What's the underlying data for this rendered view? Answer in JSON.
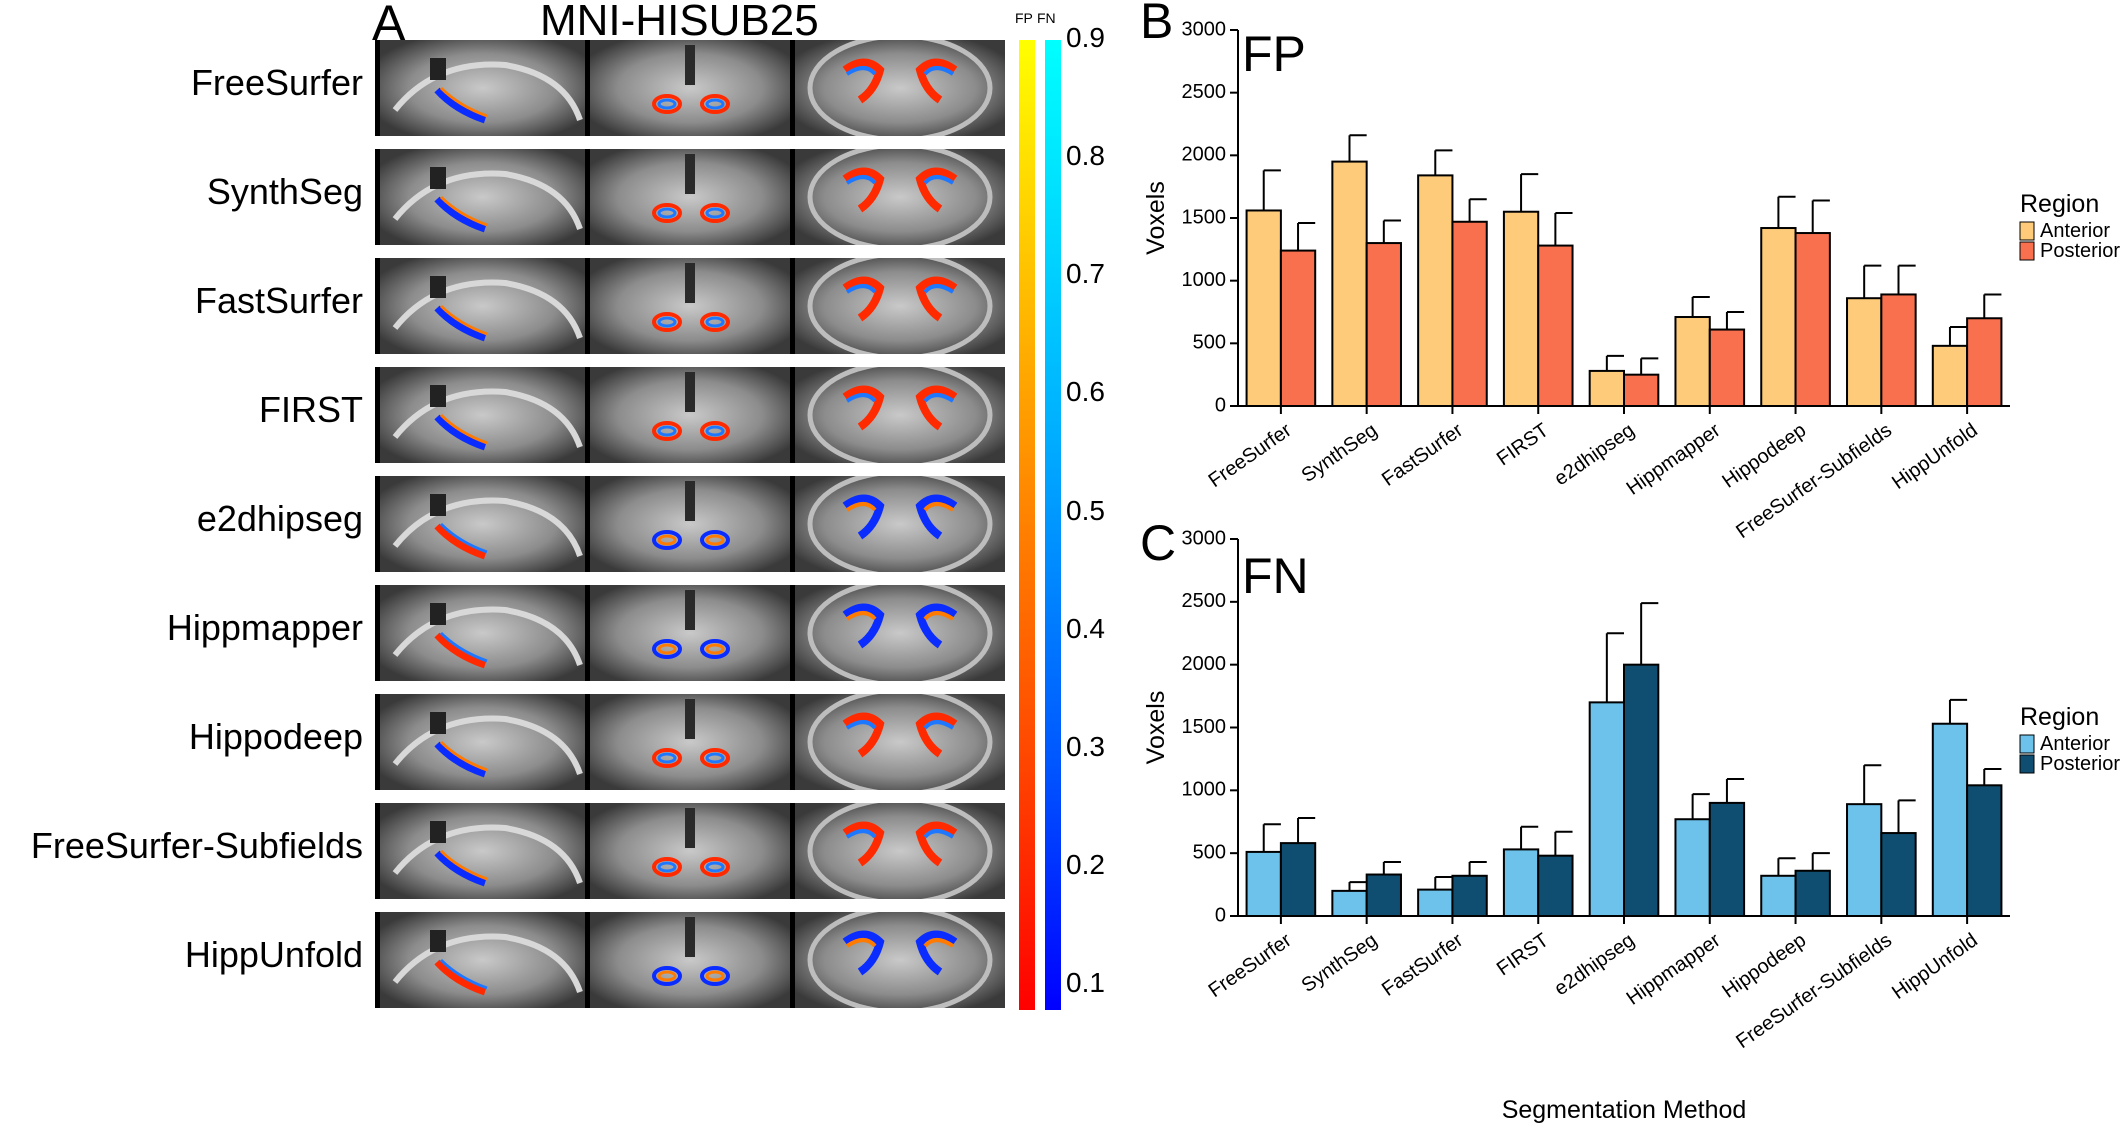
{
  "panel_a": {
    "letter": "A",
    "title": "MNI-HISUB25",
    "methods": [
      "FreeSurfer",
      "SynthSeg",
      "FastSurfer",
      "FIRST",
      "e2dhipseg",
      "Hippmapper",
      "Hippodeep",
      "FreeSurfer-Subfields",
      "HippUnfold"
    ],
    "colorbar": {
      "fp_label": "FP",
      "fn_label": "FN",
      "ticks": [
        "0.9",
        "0.8",
        "0.7",
        "0.6",
        "0.5",
        "0.4",
        "0.3",
        "0.2",
        "0.1"
      ],
      "fp_colors": [
        "#ffff00",
        "#ff9900",
        "#ff4400",
        "#ff0000"
      ],
      "fn_colors": [
        "#00ffff",
        "#00b0ff",
        "#0055ff",
        "#0000ff"
      ]
    }
  },
  "chart_data": [
    {
      "type": "bar",
      "panel_letter": "B",
      "title": "FP",
      "xlabel": "",
      "ylabel": "Voxels",
      "ylim": [
        0,
        3000
      ],
      "yticks": [
        0,
        500,
        1000,
        1500,
        2000,
        2500,
        3000
      ],
      "categories": [
        "FreeSurfer",
        "SynthSeg",
        "FastSurfer",
        "FIRST",
        "e2dhipseg",
        "Hippmapper",
        "Hippodeep",
        "FreeSurfer-Subfields",
        "HippUnfold"
      ],
      "legend_title": "Region",
      "legend_position": "right",
      "series": [
        {
          "name": "Anterior",
          "color": "#fdcb7a",
          "values": [
            1560,
            1950,
            1840,
            1550,
            280,
            710,
            1420,
            860,
            480
          ],
          "errors": [
            320,
            210,
            200,
            300,
            120,
            160,
            250,
            260,
            150
          ]
        },
        {
          "name": "Posterior",
          "color": "#f9704f",
          "values": [
            1240,
            1300,
            1470,
            1280,
            250,
            610,
            1380,
            890,
            700
          ],
          "errors": [
            220,
            180,
            180,
            260,
            130,
            140,
            260,
            230,
            190
          ]
        }
      ]
    },
    {
      "type": "bar",
      "panel_letter": "C",
      "title": "FN",
      "xlabel": "Segmentation Method",
      "ylabel": "Voxels",
      "ylim": [
        0,
        3000
      ],
      "yticks": [
        0,
        500,
        1000,
        1500,
        2000,
        2500,
        3000
      ],
      "categories": [
        "FreeSurfer",
        "SynthSeg",
        "FastSurfer",
        "FIRST",
        "e2dhipseg",
        "Hippmapper",
        "Hippodeep",
        "FreeSurfer-Subfields",
        "HippUnfold"
      ],
      "legend_title": "Region",
      "legend_position": "right",
      "series": [
        {
          "name": "Anterior",
          "color": "#6cc2ea",
          "values": [
            510,
            200,
            210,
            530,
            1700,
            770,
            320,
            890,
            1530
          ],
          "errors": [
            220,
            70,
            100,
            180,
            550,
            200,
            140,
            310,
            190
          ]
        },
        {
          "name": "Posterior",
          "color": "#0f4e70",
          "values": [
            580,
            330,
            320,
            480,
            2000,
            900,
            360,
            660,
            1040
          ],
          "errors": [
            200,
            100,
            110,
            190,
            490,
            190,
            140,
            260,
            130
          ]
        }
      ]
    }
  ]
}
